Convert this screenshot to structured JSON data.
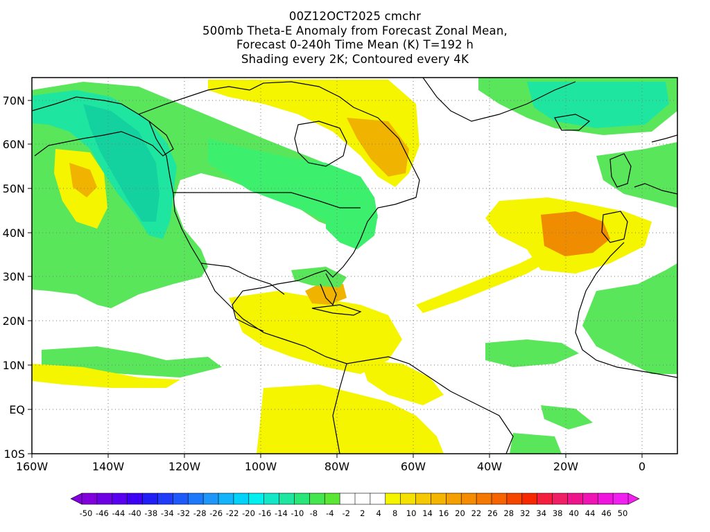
{
  "title": {
    "lines": [
      "00Z12OCT2025 cmchr",
      "500mb Theta-E Anomaly from Forecast Zonal Mean,",
      "Forecast 0-240h Time Mean (K) T=192 h",
      "Shading every 2K; Contoured every 4K"
    ]
  },
  "map": {
    "lat_labels": [
      "70N",
      "60N",
      "50N",
      "40N",
      "30N",
      "20N",
      "10N",
      "EQ",
      "10S"
    ],
    "lon_labels": [
      "160W",
      "140W",
      "120W",
      "100W",
      "80W",
      "60W",
      "40W",
      "20W",
      "0"
    ],
    "colors": {
      "green_light": "#5ae65a",
      "green": "#3cf06e",
      "teal": "#1ee6a0",
      "cyan_green": "#14d2a0",
      "yellow": "#f5f500",
      "yellow_dark": "#f0dc00",
      "orange_light": "#f0b400",
      "orange": "#f08c00",
      "land_outline": "#000000",
      "grid": "#7a7a7a"
    }
  },
  "colorbar": {
    "labels": [
      "-50",
      "-46",
      "-44",
      "-40",
      "-38",
      "-34",
      "-32",
      "-28",
      "-26",
      "-22",
      "-20",
      "-16",
      "-14",
      "-10",
      "-8",
      "-4",
      "-2",
      "2",
      "4",
      "8",
      "10",
      "14",
      "16",
      "20",
      "22",
      "26",
      "28",
      "32",
      "34",
      "38",
      "40",
      "44",
      "46",
      "50"
    ],
    "colors": [
      "#8200dc",
      "#6e00e6",
      "#5a00f0",
      "#3c00f5",
      "#1e1ef5",
      "#1e3cfa",
      "#1e5afa",
      "#1e78fa",
      "#1e96fa",
      "#14b4fa",
      "#00d2fa",
      "#00f0f0",
      "#14e6c8",
      "#1ee6a0",
      "#28e678",
      "#46e650",
      "#5ae632",
      "#ffffff",
      "#ffffff",
      "#ffffff",
      "#f5f500",
      "#f5e100",
      "#f5c800",
      "#f5b400",
      "#f5a000",
      "#f58c00",
      "#f57800",
      "#f56400",
      "#f54600",
      "#f52800",
      "#f51e3c",
      "#f01e64",
      "#f0148c",
      "#f014b4",
      "#f014dc",
      "#f020f0"
    ]
  }
}
